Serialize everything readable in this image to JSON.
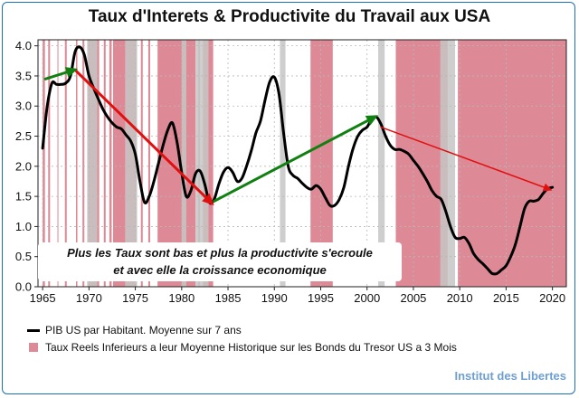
{
  "chart_data": {
    "type": "line",
    "title": "Taux d'Interets & Productivite du Travail aux USA",
    "xlabel": "",
    "ylabel": "",
    "xlim": [
      1964.5,
      2021.5
    ],
    "ylim": [
      0,
      4.1
    ],
    "x_ticks": [
      "1965",
      "1970",
      "1975",
      "1980",
      "1985",
      "1990",
      "1995",
      "2000",
      "2005",
      "2010",
      "2015",
      "2020"
    ],
    "y_ticks": [
      "0.0",
      "0.5",
      "1.0",
      "1.5",
      "2.0",
      "2.5",
      "3.0",
      "3.5",
      "4.0"
    ],
    "grid": true,
    "legend": "bottom",
    "series": [
      {
        "name": "PIB US par Habitant. Moyenne sur 7 ans",
        "color": "#000000",
        "points": [
          [
            1965.0,
            2.3
          ],
          [
            1965.5,
            3.0
          ],
          [
            1966.0,
            3.38
          ],
          [
            1966.5,
            3.36
          ],
          [
            1967.0,
            3.36
          ],
          [
            1967.5,
            3.38
          ],
          [
            1968.0,
            3.5
          ],
          [
            1968.5,
            3.9
          ],
          [
            1969.0,
            3.98
          ],
          [
            1969.5,
            3.85
          ],
          [
            1970.0,
            3.5
          ],
          [
            1970.5,
            3.3
          ],
          [
            1971.0,
            3.12
          ],
          [
            1971.5,
            2.95
          ],
          [
            1972.0,
            2.82
          ],
          [
            1972.5,
            2.72
          ],
          [
            1973.0,
            2.65
          ],
          [
            1973.5,
            2.62
          ],
          [
            1974.0,
            2.52
          ],
          [
            1974.5,
            2.42
          ],
          [
            1975.0,
            2.2
          ],
          [
            1975.5,
            1.75
          ],
          [
            1976.0,
            1.4
          ],
          [
            1976.5,
            1.5
          ],
          [
            1977.0,
            1.75
          ],
          [
            1977.5,
            2.05
          ],
          [
            1978.0,
            2.35
          ],
          [
            1978.5,
            2.6
          ],
          [
            1979.0,
            2.72
          ],
          [
            1979.5,
            2.4
          ],
          [
            1980.0,
            1.9
          ],
          [
            1980.5,
            1.5
          ],
          [
            1981.0,
            1.6
          ],
          [
            1981.5,
            1.88
          ],
          [
            1982.0,
            1.92
          ],
          [
            1982.5,
            1.7
          ],
          [
            1983.0,
            1.4
          ],
          [
            1983.5,
            1.45
          ],
          [
            1984.0,
            1.7
          ],
          [
            1984.5,
            1.9
          ],
          [
            1985.0,
            1.98
          ],
          [
            1985.5,
            1.9
          ],
          [
            1986.0,
            1.75
          ],
          [
            1986.5,
            1.8
          ],
          [
            1987.0,
            2.0
          ],
          [
            1987.5,
            2.25
          ],
          [
            1988.0,
            2.55
          ],
          [
            1988.5,
            2.75
          ],
          [
            1989.0,
            3.1
          ],
          [
            1989.5,
            3.4
          ],
          [
            1990.0,
            3.48
          ],
          [
            1990.5,
            3.2
          ],
          [
            1991.0,
            2.55
          ],
          [
            1991.5,
            2.0
          ],
          [
            1992.0,
            1.85
          ],
          [
            1992.5,
            1.8
          ],
          [
            1993.0,
            1.72
          ],
          [
            1993.5,
            1.65
          ],
          [
            1994.0,
            1.62
          ],
          [
            1994.5,
            1.68
          ],
          [
            1995.0,
            1.62
          ],
          [
            1995.5,
            1.48
          ],
          [
            1996.0,
            1.35
          ],
          [
            1996.5,
            1.35
          ],
          [
            1997.0,
            1.45
          ],
          [
            1997.5,
            1.65
          ],
          [
            1998.0,
            2.0
          ],
          [
            1998.5,
            2.3
          ],
          [
            1999.0,
            2.5
          ],
          [
            1999.5,
            2.6
          ],
          [
            2000.0,
            2.65
          ],
          [
            2000.5,
            2.78
          ],
          [
            2001.0,
            2.82
          ],
          [
            2001.5,
            2.7
          ],
          [
            2002.0,
            2.5
          ],
          [
            2002.5,
            2.35
          ],
          [
            2003.0,
            2.28
          ],
          [
            2003.5,
            2.28
          ],
          [
            2004.0,
            2.25
          ],
          [
            2004.5,
            2.2
          ],
          [
            2005.0,
            2.1
          ],
          [
            2005.5,
            2.0
          ],
          [
            2006.0,
            1.88
          ],
          [
            2006.5,
            1.75
          ],
          [
            2007.0,
            1.6
          ],
          [
            2007.5,
            1.5
          ],
          [
            2008.0,
            1.45
          ],
          [
            2008.5,
            1.25
          ],
          [
            2009.0,
            1.0
          ],
          [
            2009.5,
            0.82
          ],
          [
            2010.0,
            0.8
          ],
          [
            2010.5,
            0.82
          ],
          [
            2011.0,
            0.72
          ],
          [
            2011.5,
            0.55
          ],
          [
            2012.0,
            0.45
          ],
          [
            2012.5,
            0.38
          ],
          [
            2013.0,
            0.3
          ],
          [
            2013.5,
            0.22
          ],
          [
            2014.0,
            0.22
          ],
          [
            2014.5,
            0.28
          ],
          [
            2015.0,
            0.35
          ],
          [
            2015.5,
            0.5
          ],
          [
            2016.0,
            0.7
          ],
          [
            2016.5,
            1.0
          ],
          [
            2017.0,
            1.3
          ],
          [
            2017.5,
            1.42
          ],
          [
            2018.0,
            1.42
          ],
          [
            2018.5,
            1.45
          ],
          [
            2019.0,
            1.55
          ],
          [
            2019.5,
            1.63
          ],
          [
            2020.0,
            1.65
          ]
        ]
      }
    ],
    "shaded_name": "Taux Reels Inferieurs a leur Moyenne Historique sur les Bonds du Tresor US a 3 Mois",
    "shaded_color": "#de8a96",
    "shaded_periods": [
      [
        1965.0,
        1965.25
      ],
      [
        1965.6,
        1965.8
      ],
      [
        1966.6,
        1966.7
      ],
      [
        1967.4,
        1967.6
      ],
      [
        1968.6,
        1968.75
      ],
      [
        1969.3,
        1969.5
      ],
      [
        1969.9,
        1971.1
      ],
      [
        1971.6,
        1971.8
      ],
      [
        1972.2,
        1972.45
      ],
      [
        1972.6,
        1975.1
      ],
      [
        1975.6,
        1975.8
      ],
      [
        1976.4,
        1976.6
      ],
      [
        1977.4,
        1981.5
      ],
      [
        1981.8,
        1981.95
      ],
      [
        1982.3,
        1983.4
      ],
      [
        1993.9,
        1996.3
      ],
      [
        2003.1,
        2008.7
      ],
      [
        2009.8,
        2021.5
      ]
    ],
    "recession_color": "#c6c6c6",
    "recession_periods": [
      [
        1969.8,
        1970.9
      ],
      [
        1973.9,
        1975.2
      ],
      [
        1980.0,
        1980.5
      ],
      [
        1981.5,
        1982.9
      ],
      [
        1990.6,
        1991.2
      ],
      [
        2001.2,
        2001.9
      ],
      [
        2007.9,
        2009.5
      ]
    ],
    "arrows": [
      {
        "color": "#e01010",
        "width": 3,
        "from": [
          1968.5,
          3.6
        ],
        "to": [
          1983.5,
          1.35
        ]
      },
      {
        "color": "#108010",
        "width": 3,
        "from": [
          1983.5,
          1.42
        ],
        "to": [
          2001.2,
          2.85
        ]
      },
      {
        "color": "#e01010",
        "width": 1.5,
        "from": [
          2001.5,
          2.65
        ],
        "to": [
          2020.0,
          1.6
        ]
      },
      {
        "color": "#108010",
        "width": 3,
        "from": [
          1965.3,
          3.45
        ],
        "to": [
          1968.8,
          3.62
        ]
      }
    ],
    "annotation": [
      "Plus les Taux sont bas et plus la productivite s'ecroule",
      "et avec elle la croissance economique"
    ],
    "source": "Institut des Libertes"
  }
}
